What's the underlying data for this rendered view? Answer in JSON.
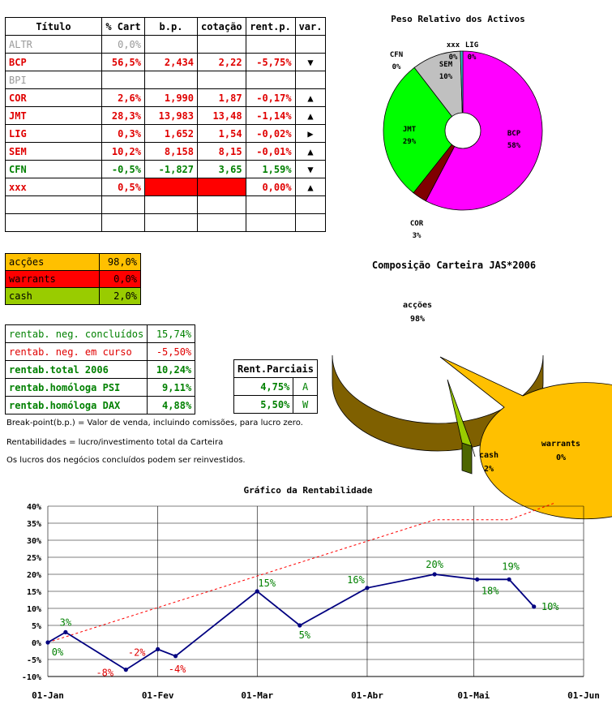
{
  "holdings_table": {
    "headers": [
      "Título",
      "% Cart",
      "b.p.",
      "cotação",
      "rent.p.",
      "var."
    ],
    "rows": [
      {
        "name": "ALTR",
        "pct": "0,0%",
        "bp": "",
        "price": "",
        "rent": "",
        "var": "",
        "style": "gray"
      },
      {
        "name": "BCP",
        "pct": "56,5%",
        "bp": "2,434",
        "price": "2,22",
        "rent": "-5,75%",
        "var": "▼",
        "style": "red"
      },
      {
        "name": "BPI",
        "pct": "",
        "bp": "",
        "price": "",
        "rent": "",
        "var": "",
        "style": "gray"
      },
      {
        "name": "COR",
        "pct": "2,6%",
        "bp": "1,990",
        "price": "1,87",
        "rent": "-0,17%",
        "var": "▲",
        "style": "red"
      },
      {
        "name": "JMT",
        "pct": "28,3%",
        "bp": "13,983",
        "price": "13,48",
        "rent": "-1,14%",
        "var": "▲",
        "style": "red"
      },
      {
        "name": "LIG",
        "pct": "0,3%",
        "bp": "1,652",
        "price": "1,54",
        "rent": "-0,02%",
        "var": "▶",
        "style": "red"
      },
      {
        "name": "SEM",
        "pct": "10,2%",
        "bp": "8,158",
        "price": "8,15",
        "rent": "-0,01%",
        "var": "▲",
        "style": "red"
      },
      {
        "name": "CFN",
        "pct": "-0,5%",
        "bp": "-1,827",
        "price": "3,65",
        "rent": "1,59%",
        "var": "▼",
        "style": "green"
      },
      {
        "name": "xxx",
        "pct": "0,5%",
        "bp": "",
        "price": "",
        "rent": "0,00%",
        "var": "▲",
        "style": "redx"
      },
      {
        "name": "",
        "pct": "",
        "bp": "",
        "price": "",
        "rent": "",
        "var": "",
        "style": "blank"
      },
      {
        "name": "",
        "pct": "",
        "bp": "",
        "price": "",
        "rent": "",
        "var": "",
        "style": "blank"
      }
    ]
  },
  "allocation_table": {
    "rows": [
      {
        "label": "acções",
        "value": "98,0%",
        "color": "#ffc000"
      },
      {
        "label": "warrants",
        "value": "0,0%",
        "color": "#ff0000"
      },
      {
        "label": "cash",
        "value": "2,0%",
        "color": "#99cc00"
      }
    ]
  },
  "returns_table": {
    "rows": [
      {
        "label": "rentab. neg. concluídos",
        "value": "15,74%",
        "color": "#008000",
        "bold": false
      },
      {
        "label": "rentab. neg. em curso",
        "value": "-5,50%",
        "color": "#e00000",
        "bold": false
      },
      {
        "label": "rentab.total 2006",
        "value": "10,24%",
        "color": "#008000",
        "bold": true
      },
      {
        "label": "rentab.homóloga PSI",
        "value": "9,11%",
        "color": "#008000",
        "bold": true
      },
      {
        "label": "rentab.homóloga DAX",
        "value": "4,88%",
        "color": "#008000",
        "bold": true
      }
    ]
  },
  "partial_returns": {
    "header": "Rent.Parciais",
    "rows": [
      {
        "value": "4,75%",
        "tag": "A"
      },
      {
        "value": "5,50%",
        "tag": "W"
      }
    ]
  },
  "notes": [
    "Break-point(b.p.) = Valor de venda, incluindo comissões, para lucro zero.",
    "Rentabilidades = lucro/investimento total da Carteira",
    "Os lucros dos negócios concluídos podem ser reinvestidos."
  ],
  "chart_data": [
    {
      "type": "pie",
      "title": "Peso Relativo dos Activos",
      "donut": true,
      "slices": [
        {
          "label": "BCP",
          "value": 58,
          "value_label": "58%",
          "color": "#ff00ff"
        },
        {
          "label": "COR",
          "value": 3,
          "value_label": "3%",
          "color": "#800000"
        },
        {
          "label": "JMT",
          "value": 29,
          "value_label": "29%",
          "color": "#00ff00"
        },
        {
          "label": "CFN",
          "value": 0,
          "value_label": "0%",
          "color": "#008000"
        },
        {
          "label": "SEM",
          "value": 10,
          "value_label": "10%",
          "color": "#c0c0c0"
        },
        {
          "label": "xxx",
          "value": 0,
          "value_label": "0%",
          "color": "#0000ff"
        },
        {
          "label": "LIG",
          "value": 0.5,
          "value_label": "0%",
          "color": "#33cccc"
        }
      ]
    },
    {
      "type": "pie",
      "title": "Composição Carteira JAS*2006",
      "three_d": true,
      "slices": [
        {
          "label": "acções",
          "value": 98,
          "value_label": "98%",
          "color": "#ffc000"
        },
        {
          "label": "warrants",
          "value": 0,
          "value_label": "0%",
          "color": "#ff0000"
        },
        {
          "label": "cash",
          "value": 2,
          "value_label": "2%",
          "color": "#99cc00"
        }
      ]
    },
    {
      "type": "line",
      "title": "Gráfico da Rentabilidade",
      "x_ticks": [
        "01-Jan",
        "01-Fev",
        "01-Mar",
        "01-Abr",
        "01-Mai",
        "01-Jun"
      ],
      "x_tick_days": [
        0,
        31,
        59,
        90,
        120,
        151
      ],
      "y_ticks": [
        "-10%",
        "-5%",
        "0%",
        "5%",
        "10%",
        "15%",
        "20%",
        "25%",
        "30%",
        "35%",
        "40%"
      ],
      "ylim": [
        -10,
        40
      ],
      "xlim": [
        0,
        151
      ],
      "grid": true,
      "series": [
        {
          "points": [
            {
              "day": 0,
              "value": 0,
              "label": "0%",
              "color": "#008000"
            },
            {
              "day": 5,
              "value": 3,
              "label": "3%",
              "color": "#008000"
            },
            {
              "day": 22,
              "value": -8,
              "label": "-8%",
              "color": "#e00000"
            },
            {
              "day": 31,
              "value": -2,
              "label": "-2%",
              "color": "#e00000"
            },
            {
              "day": 36,
              "value": -4,
              "label": "-4%",
              "color": "#e00000"
            },
            {
              "day": 59,
              "value": 15,
              "label": "15%",
              "color": "#008000"
            },
            {
              "day": 71,
              "value": 5,
              "label": "5%",
              "color": "#008000"
            },
            {
              "day": 90,
              "value": 16,
              "label": "16%",
              "color": "#008000"
            },
            {
              "day": 109,
              "value": 20,
              "label": "20%",
              "color": "#008000"
            },
            {
              "day": 121,
              "value": 18.5,
              "label": "18%",
              "color": "#008000"
            },
            {
              "day": 130,
              "value": 18.5,
              "label": "19%",
              "color": "#008000"
            },
            {
              "day": 137,
              "value": 10.5,
              "label": "10%",
              "color": "#008000"
            }
          ],
          "color": "#000080"
        },
        {
          "points": [
            {
              "day": 0,
              "value": 0
            },
            {
              "day": 109,
              "value": 36
            },
            {
              "day": 130,
              "value": 36
            },
            {
              "day": 143,
              "value": 41
            }
          ],
          "color": "#ff0000",
          "dashed": true
        }
      ]
    }
  ]
}
